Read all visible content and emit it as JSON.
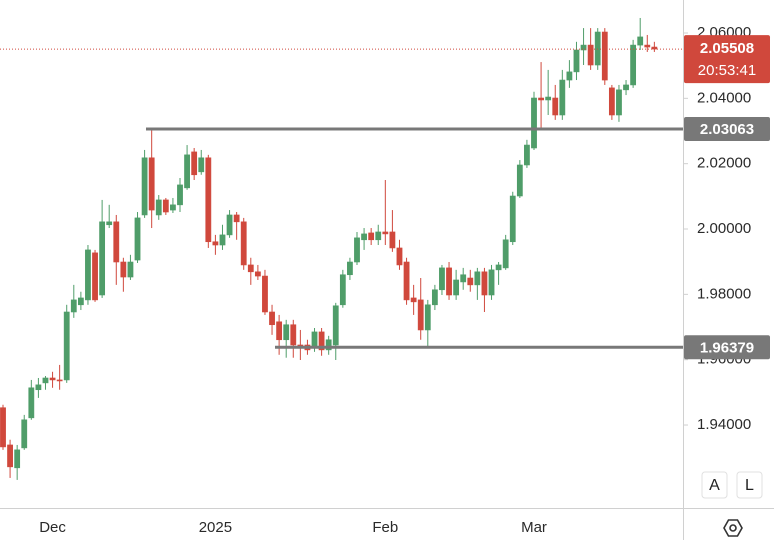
{
  "chart_data": {
    "type": "candlestick",
    "categories": [
      null,
      null,
      null,
      null,
      null,
      null,
      null,
      "Dec",
      null,
      null,
      null,
      null,
      null,
      null,
      null,
      null,
      null,
      null,
      null,
      null,
      null,
      null,
      null,
      null,
      null,
      null,
      null,
      null,
      null,
      null,
      "2025",
      null,
      null,
      null,
      null,
      null,
      null,
      null,
      null,
      null,
      null,
      null,
      null,
      null,
      null,
      null,
      null,
      null,
      null,
      null,
      null,
      null,
      null,
      null,
      "Feb",
      null,
      null,
      null,
      null,
      null,
      null,
      null,
      null,
      null,
      null,
      null,
      null,
      null,
      null,
      null,
      null,
      null,
      null,
      null,
      null,
      "Mar",
      null,
      null,
      null,
      null,
      null,
      null,
      null,
      null,
      null,
      null,
      null,
      null,
      null,
      null,
      null,
      null,
      null
    ],
    "open": [
      1.9453,
      1.9339,
      1.9269,
      1.933,
      1.9422,
      1.9508,
      1.9529,
      1.9544,
      1.9538,
      1.9538,
      1.9746,
      1.9768,
      1.9783,
      1.9927,
      1.9798,
      2.0013,
      2.0022,
      1.9899,
      1.9853,
      1.9905,
      2.0043,
      2.0218,
      2.0043,
      2.0089,
      2.0058,
      2.0074,
      2.0126,
      2.0236,
      2.0175,
      2.0218,
      1.9961,
      1.9951,
      1.9982,
      2.0043,
      2.0022,
      1.989,
      1.9869,
      1.9856,
      1.9746,
      1.9716,
      1.9661,
      1.9707,
      1.9645,
      1.9645,
      1.9636,
      1.9685,
      1.963,
      1.9645,
      1.9768,
      1.986,
      1.9899,
      1.9967,
      1.9988,
      1.9967,
      1.9991,
      1.9991,
      1.9942,
      1.9899,
      1.9789,
      1.9783,
      1.9691,
      1.9768,
      1.9814,
      1.9881,
      1.9798,
      1.9838,
      1.985,
      1.9829,
      1.9869,
      1.9798,
      1.9875,
      1.9881,
      1.9961,
      2.0101,
      2.0196,
      2.0248,
      2.0401,
      2.0395,
      2.0401,
      2.0349,
      2.0456,
      2.0481,
      2.0548,
      2.0563,
      2.0502,
      2.0603,
      2.0432,
      2.0349,
      2.0426,
      2.0441,
      2.0563,
      2.0563,
      2.0557
    ],
    "high": [
      1.9462,
      1.9355,
      1.9339,
      1.9431,
      1.9538,
      1.9544,
      1.955,
      1.9563,
      1.9584,
      1.9768,
      1.9829,
      1.9808,
      1.9951,
      1.9936,
      2.0089,
      2.0074,
      2.0043,
      1.9912,
      1.9921,
      2.0052,
      2.0242,
      2.0303,
      2.0104,
      2.0095,
      2.0095,
      2.0156,
      2.0257,
      2.0248,
      2.0242,
      2.0227,
      1.9982,
      2.0013,
      2.0058,
      2.0052,
      2.0034,
      1.9912,
      1.989,
      1.9875,
      1.9768,
      1.9737,
      1.9722,
      1.9722,
      1.9691,
      1.9661,
      1.9697,
      1.9697,
      1.9673,
      1.9774,
      1.9875,
      1.9912,
      1.9991,
      2.0003,
      2.0003,
      2.0013,
      2.015,
      2.0058,
      1.9967,
      1.9912,
      1.9829,
      1.985,
      1.9783,
      1.9829,
      1.989,
      1.9899,
      1.9875,
      1.9881,
      1.9875,
      1.9881,
      1.9881,
      1.989,
      1.9899,
      1.9982,
      2.0114,
      2.0211,
      2.0273,
      2.042,
      2.0511,
      2.0487,
      2.0441,
      2.0487,
      2.0517,
      2.0573,
      2.0615,
      2.0615,
      2.0615,
      2.0615,
      2.0441,
      2.0441,
      2.0456,
      2.0579,
      2.0646,
      2.0594,
      2.0573
    ],
    "low": [
      1.9324,
      1.9238,
      1.9232,
      1.9324,
      1.9416,
      1.9483,
      1.9508,
      1.9514,
      1.9508,
      1.9529,
      1.9728,
      1.9752,
      1.9768,
      1.9777,
      1.9789,
      2.0003,
      1.9829,
      1.9808,
      1.9844,
      1.9896,
      2.0034,
      2.0003,
      2.0028,
      2.0043,
      2.0049,
      2.0052,
      2.012,
      2.015,
      2.0166,
      1.9942,
      1.9921,
      1.9936,
      1.9973,
      1.9967,
      1.9875,
      1.9829,
      1.9844,
      1.9737,
      1.9676,
      1.9615,
      1.9606,
      1.9606,
      1.9599,
      1.9615,
      1.9624,
      1.9612,
      1.9615,
      1.9599,
      1.9759,
      1.9844,
      1.989,
      1.9936,
      1.9951,
      1.9951,
      1.9951,
      1.993,
      1.9875,
      1.9768,
      1.9737,
      1.9661,
      1.9636,
      1.9752,
      1.9798,
      1.9783,
      1.9783,
      1.9814,
      1.9808,
      1.9783,
      1.9746,
      1.9783,
      1.9829,
      1.9875,
      1.9951,
      2.0095,
      2.0187,
      2.0242,
      2.0303,
      2.0349,
      2.0334,
      2.0334,
      2.0432,
      2.0456,
      2.0502,
      2.0487,
      2.0487,
      2.0441,
      2.0334,
      2.0328,
      2.041,
      2.0432,
      2.0548,
      2.0542,
      2.0542
    ],
    "close": [
      1.9333,
      1.9272,
      1.9324,
      1.9416,
      1.9514,
      1.9523,
      1.9544,
      1.9538,
      1.9535,
      1.9746,
      1.9783,
      1.9789,
      1.9936,
      1.9783,
      2.0022,
      2.0022,
      1.9899,
      1.9853,
      1.9899,
      2.0034,
      2.0218,
      2.0058,
      2.0089,
      2.0052,
      2.0074,
      2.0135,
      2.0227,
      2.0166,
      2.0218,
      1.9961,
      1.9951,
      1.9982,
      2.0043,
      2.0022,
      1.989,
      1.9869,
      1.9856,
      1.9746,
      1.9707,
      1.9661,
      1.9707,
      1.9645,
      1.9636,
      1.963,
      1.9685,
      1.963,
      1.9661,
      1.9765,
      1.986,
      1.9899,
      1.9973,
      1.9985,
      1.9967,
      1.9991,
      1.9985,
      1.9942,
      1.989,
      1.9783,
      1.9777,
      1.9691,
      1.9768,
      1.9814,
      1.9881,
      1.9798,
      1.9844,
      1.986,
      1.9829,
      1.9869,
      1.9798,
      1.9875,
      1.989,
      1.9967,
      2.0101,
      2.0196,
      2.0257,
      2.0401,
      2.0395,
      2.0404,
      2.0349,
      2.0456,
      2.0481,
      2.0548,
      2.0563,
      2.0502,
      2.0603,
      2.0456,
      2.0349,
      2.0426,
      2.0441,
      2.0563,
      2.0588,
      2.0557,
      2.05508
    ],
    "up_color": "#4f9d69",
    "down_color": "#d0483c",
    "levels": [
      2.03063,
      1.96379
    ],
    "level_color": "#787878",
    "countdown": "20:53:41",
    "ylim": [
      1.9146,
      2.0701
    ],
    "yticks": [
      {
        "value": 1.94,
        "label": "1.94000"
      },
      {
        "value": 1.96,
        "label": "1.96000"
      },
      {
        "value": 1.98,
        "label": "1.98000"
      },
      {
        "value": 2.0,
        "label": "2.00000"
      },
      {
        "value": 2.02,
        "label": "2.02000"
      },
      {
        "value": 2.04,
        "label": "2.04000"
      },
      {
        "value": 2.06,
        "label": "2.06000"
      }
    ],
    "buttons": [
      "A",
      "L"
    ]
  }
}
